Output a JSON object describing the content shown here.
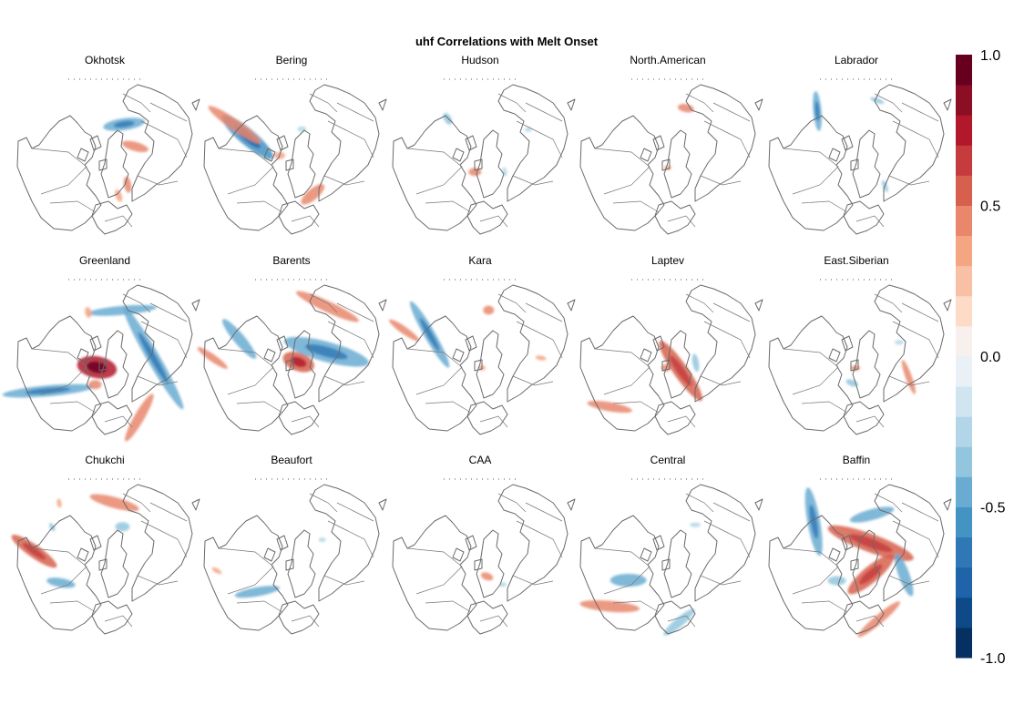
{
  "chart_data": {
    "type": "heatmap",
    "title": "uhf Correlations with Melt Onset",
    "layout": {
      "rows": 3,
      "cols": 5
    },
    "panels": [
      {
        "label": "Okhotsk",
        "blobs": [
          {
            "sign": -1,
            "strength": 0.5,
            "lon": 150,
            "lat": 52,
            "len": 46,
            "wid": 13,
            "rot": -8
          },
          {
            "sign": 1,
            "strength": 0.45,
            "lon": 110,
            "lat": 58,
            "len": 30,
            "wid": 10,
            "rot": 15
          },
          {
            "sign": 1,
            "strength": 0.4,
            "lon": 40,
            "lat": 55,
            "len": 18,
            "wid": 8,
            "rot": 80
          },
          {
            "sign": 1,
            "strength": 0.35,
            "lon": 20,
            "lat": 50,
            "len": 14,
            "wid": 7,
            "rot": 70
          }
        ]
      },
      {
        "label": "Bering",
        "blobs": [
          {
            "sign": -1,
            "strength": 0.6,
            "lon": -115,
            "lat": 42,
            "len": 72,
            "wid": 18,
            "rot": 40
          },
          {
            "sign": 1,
            "strength": 0.45,
            "lon": -120,
            "lat": 25,
            "len": 70,
            "wid": 12,
            "rot": 35
          },
          {
            "sign": 1,
            "strength": 0.45,
            "lon": 30,
            "lat": 48,
            "len": 32,
            "wid": 12,
            "rot": -40
          },
          {
            "sign": 1,
            "strength": 0.35,
            "lon": -100,
            "lat": 78,
            "len": 12,
            "wid": 8,
            "rot": 0
          },
          {
            "sign": -1,
            "strength": 0.3,
            "lon": 160,
            "lat": 60,
            "len": 10,
            "wid": 6,
            "rot": 0
          }
        ]
      },
      {
        "label": "Hudson",
        "blobs": [
          {
            "sign": -1,
            "strength": 0.35,
            "lon": -140,
            "lat": 40,
            "len": 14,
            "wid": 8,
            "rot": 60
          },
          {
            "sign": 1,
            "strength": 0.4,
            "lon": -20,
            "lat": 75,
            "len": 14,
            "wid": 9,
            "rot": 0
          },
          {
            "sign": -1,
            "strength": 0.3,
            "lon": 120,
            "lat": 35,
            "len": 8,
            "wid": 5,
            "rot": 0
          },
          {
            "sign": -1,
            "strength": 0.3,
            "lon": 60,
            "lat": 62,
            "len": 10,
            "wid": 5,
            "rot": 80
          }
        ]
      },
      {
        "label": "North.American",
        "blobs": [
          {
            "sign": 1,
            "strength": 0.45,
            "lon": 160,
            "lat": 38,
            "len": 18,
            "wid": 9,
            "rot": 10
          },
          {
            "sign": 1,
            "strength": 0.35,
            "lon": 0,
            "lat": 80,
            "len": 8,
            "wid": 5,
            "rot": 0
          }
        ]
      },
      {
        "label": "Labrador",
        "blobs": [
          {
            "sign": -1,
            "strength": 0.5,
            "lon": -140,
            "lat": 30,
            "len": 44,
            "wid": 9,
            "rot": 85
          },
          {
            "sign": -1,
            "strength": 0.35,
            "lon": 160,
            "lat": 30,
            "len": 16,
            "wid": 5,
            "rot": 20
          },
          {
            "sign": -1,
            "strength": 0.35,
            "lon": 45,
            "lat": 50,
            "len": 14,
            "wid": 5,
            "rot": 70
          }
        ]
      },
      {
        "label": "Greenland",
        "blobs": [
          {
            "sign": 1,
            "strength": 0.7,
            "lon": -40,
            "lat": 78,
            "len": 44,
            "wid": 24,
            "rot": 10
          },
          {
            "sign": -1,
            "strength": 0.5,
            "lon": 90,
            "lat": 42,
            "len": 130,
            "wid": 14,
            "rot": 60
          },
          {
            "sign": -1,
            "strength": 0.45,
            "lon": 160,
            "lat": 40,
            "len": 76,
            "wid": 10,
            "rot": -5
          },
          {
            "sign": -1,
            "strength": 0.5,
            "lon": -60,
            "lat": 25,
            "len": 100,
            "wid": 12,
            "rot": -5
          },
          {
            "sign": 1,
            "strength": 0.45,
            "lon": 30,
            "lat": 22,
            "len": 60,
            "wid": 11,
            "rot": -60
          },
          {
            "sign": 1,
            "strength": 0.4,
            "lon": -20,
            "lat": 62,
            "len": 14,
            "wid": 10,
            "rot": 0
          },
          {
            "sign": 1,
            "strength": 0.35,
            "lon": -160,
            "lat": 42,
            "len": 12,
            "wid": 7,
            "rot": 80
          }
        ]
      },
      {
        "label": "Barents",
        "blobs": [
          {
            "sign": 1,
            "strength": 0.55,
            "lon": 60,
            "lat": 82,
            "len": 36,
            "wid": 20,
            "rot": 20
          },
          {
            "sign": -1,
            "strength": 0.5,
            "lon": 100,
            "lat": 55,
            "len": 96,
            "wid": 22,
            "rot": 15
          },
          {
            "sign": 1,
            "strength": 0.45,
            "lon": 145,
            "lat": 28,
            "len": 76,
            "wid": 12,
            "rot": 25
          },
          {
            "sign": -1,
            "strength": 0.45,
            "lon": -110,
            "lat": 35,
            "len": 56,
            "wid": 12,
            "rot": 50
          },
          {
            "sign": 1,
            "strength": 0.4,
            "lon": -90,
            "lat": 12,
            "len": 40,
            "wid": 8,
            "rot": 35
          }
        ]
      },
      {
        "label": "Kara",
        "blobs": [
          {
            "sign": -1,
            "strength": 0.5,
            "lon": -115,
            "lat": 35,
            "len": 84,
            "wid": 12,
            "rot": 60
          },
          {
            "sign": 1,
            "strength": 0.45,
            "lon": -110,
            "lat": 10,
            "len": 40,
            "wid": 8,
            "rot": 35
          },
          {
            "sign": 1,
            "strength": 0.4,
            "lon": 170,
            "lat": 42,
            "len": 12,
            "wid": 10,
            "rot": 0
          },
          {
            "sign": 1,
            "strength": 0.35,
            "lon": 90,
            "lat": 30,
            "len": 12,
            "wid": 5,
            "rot": 10
          },
          {
            "sign": 1,
            "strength": 0.35,
            "lon": 10,
            "lat": 80,
            "len": 8,
            "wid": 6,
            "rot": 0
          }
        ]
      },
      {
        "label": "Laptev",
        "blobs": [
          {
            "sign": 1,
            "strength": 0.5,
            "lon": 45,
            "lat": 72,
            "len": 80,
            "wid": 16,
            "rot": 55
          },
          {
            "sign": 1,
            "strength": 0.4,
            "lon": -50,
            "lat": 15,
            "len": 50,
            "wid": 10,
            "rot": 10
          },
          {
            "sign": -1,
            "strength": 0.35,
            "lon": 80,
            "lat": 62,
            "len": 20,
            "wid": 7,
            "rot": 80
          },
          {
            "sign": 1,
            "strength": 0.4,
            "lon": -10,
            "lat": 80,
            "len": 10,
            "wid": 8,
            "rot": 0
          }
        ]
      },
      {
        "label": "East.Siberian",
        "blobs": [
          {
            "sign": 1,
            "strength": 0.4,
            "lon": 70,
            "lat": 35,
            "len": 40,
            "wid": 7,
            "rot": 70
          },
          {
            "sign": -1,
            "strength": 0.35,
            "lon": -10,
            "lat": 65,
            "len": 14,
            "wid": 7,
            "rot": 20
          },
          {
            "sign": 1,
            "strength": 0.4,
            "lon": -5,
            "lat": 80,
            "len": 10,
            "wid": 6,
            "rot": 0
          },
          {
            "sign": -1,
            "strength": 0.3,
            "lon": 110,
            "lat": 45,
            "len": 10,
            "wid": 5,
            "rot": 0
          }
        ]
      },
      {
        "label": "Chukchi",
        "blobs": [
          {
            "sign": 1,
            "strength": 0.45,
            "lon": 170,
            "lat": 35,
            "len": 56,
            "wid": 12,
            "rot": 15
          },
          {
            "sign": 1,
            "strength": 0.5,
            "lon": -95,
            "lat": 20,
            "len": 60,
            "wid": 14,
            "rot": 35
          },
          {
            "sign": -1,
            "strength": 0.45,
            "lon": -60,
            "lat": 40,
            "len": 32,
            "wid": 10,
            "rot": 10
          },
          {
            "sign": -1,
            "strength": 0.4,
            "lon": 150,
            "lat": 55,
            "len": 16,
            "wid": 10,
            "rot": 0
          },
          {
            "sign": 1,
            "strength": 0.35,
            "lon": -140,
            "lat": 20,
            "len": 10,
            "wid": 5,
            "rot": 80
          },
          {
            "sign": -1,
            "strength": 0.35,
            "lon": -120,
            "lat": 30,
            "len": 10,
            "wid": 5,
            "rot": 60
          }
        ]
      },
      {
        "label": "Beaufort",
        "blobs": [
          {
            "sign": -1,
            "strength": 0.45,
            "lon": -45,
            "lat": 42,
            "len": 50,
            "wid": 10,
            "rot": -10
          },
          {
            "sign": 1,
            "strength": 0.35,
            "lon": -80,
            "lat": 15,
            "len": 12,
            "wid": 5,
            "rot": 30
          },
          {
            "sign": -1,
            "strength": 0.3,
            "lon": 120,
            "lat": 55,
            "len": 8,
            "wid": 5,
            "rot": 0
          }
        ]
      },
      {
        "label": "CAA",
        "blobs": [
          {
            "sign": 1,
            "strength": 0.4,
            "lon": 20,
            "lat": 70,
            "len": 14,
            "wid": 8,
            "rot": 20
          },
          {
            "sign": -1,
            "strength": 0.3,
            "lon": 40,
            "lat": 55,
            "len": 8,
            "wid": 5,
            "rot": 0
          }
        ]
      },
      {
        "label": "Central",
        "blobs": [
          {
            "sign": -1,
            "strength": 0.45,
            "lon": -60,
            "lat": 45,
            "len": 40,
            "wid": 14,
            "rot": 0
          },
          {
            "sign": 1,
            "strength": 0.45,
            "lon": -50,
            "lat": 15,
            "len": 66,
            "wid": 12,
            "rot": 5
          },
          {
            "sign": -1,
            "strength": 0.4,
            "lon": 10,
            "lat": 25,
            "len": 44,
            "wid": 10,
            "rot": -40
          },
          {
            "sign": -1,
            "strength": 0.3,
            "lon": 140,
            "lat": 48,
            "len": 12,
            "wid": 5,
            "rot": 0
          }
        ]
      },
      {
        "label": "Baffin",
        "blobs": [
          {
            "sign": -1,
            "strength": 0.45,
            "lon": 160,
            "lat": 45,
            "len": 50,
            "wid": 12,
            "rot": -15
          },
          {
            "sign": 1,
            "strength": 0.5,
            "lon": 135,
            "lat": 70,
            "len": 100,
            "wid": 20,
            "rot": 20
          },
          {
            "sign": 1,
            "strength": 0.5,
            "lon": 40,
            "lat": 68,
            "len": 64,
            "wid": 18,
            "rot": -40
          },
          {
            "sign": -1,
            "strength": 0.5,
            "lon": -130,
            "lat": 35,
            "len": 76,
            "wid": 14,
            "rot": 80
          },
          {
            "sign": -1,
            "strength": 0.45,
            "lon": 70,
            "lat": 40,
            "len": 50,
            "wid": 12,
            "rot": 70
          },
          {
            "sign": 1,
            "strength": 0.4,
            "lon": 20,
            "lat": 25,
            "len": 60,
            "wid": 10,
            "rot": -40
          },
          {
            "sign": -1,
            "strength": 0.4,
            "lon": -40,
            "lat": 60,
            "len": 20,
            "wid": 10,
            "rot": 0
          }
        ]
      }
    ],
    "colorbar": {
      "range": [
        -1.0,
        1.0
      ],
      "tick_labels": [
        "1.0",
        "0.5",
        "0.0",
        "-0.5",
        "-1.0"
      ],
      "tick_values": [
        1.0,
        0.5,
        0.0,
        -0.5,
        -1.0
      ],
      "bins": 20,
      "colors": [
        "#053061",
        "#0d4a87",
        "#1f63a8",
        "#2f78b5",
        "#4393c3",
        "#6aabd1",
        "#92c5de",
        "#b2d6e8",
        "#d1e5f0",
        "#e9f1f6",
        "#f7f0ec",
        "#fddbc7",
        "#f8c1a6",
        "#f4a582",
        "#e8876c",
        "#d6604d",
        "#c63b3d",
        "#b2182b",
        "#8c0e24",
        "#67001f"
      ]
    },
    "grid": false,
    "legend_position": "right"
  }
}
